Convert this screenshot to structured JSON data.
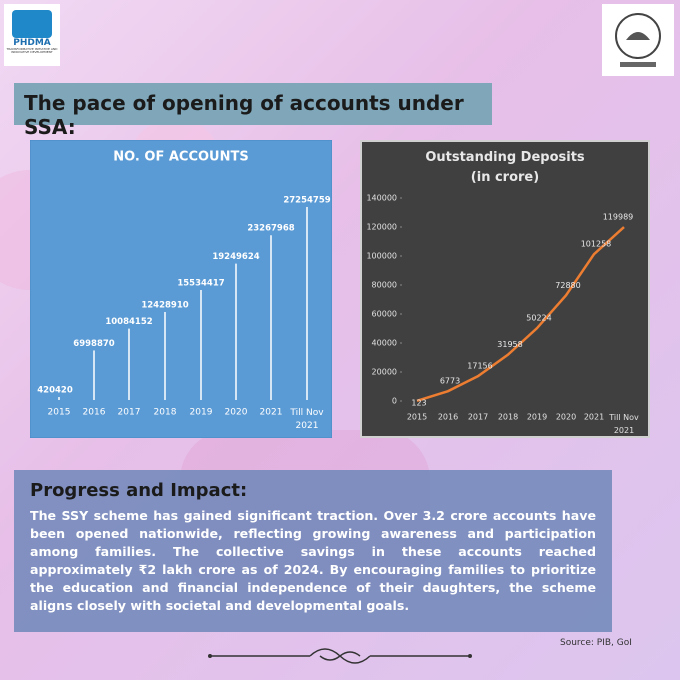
{
  "logo": {
    "name": "PHDMA",
    "tagline": "TRANSFORMATIVE INITIATIVE AND INNOVATIVE DEVELOPMENT"
  },
  "header": {
    "title": "The pace of opening of accounts under SSA:"
  },
  "chart_data": [
    {
      "type": "bar",
      "title": "NO. OF ACCOUNTS",
      "categories": [
        "2015",
        "2016",
        "2017",
        "2018",
        "2019",
        "2020",
        "2021",
        "Till Nov 2021"
      ],
      "values": [
        420420,
        6998870,
        10084152,
        12428910,
        15534417,
        19249624,
        23267968,
        27254759
      ],
      "color": "#ffffff"
    },
    {
      "type": "line",
      "title": "Outstanding Deposits (in crore)",
      "categories": [
        "2015",
        "2016",
        "2017",
        "2018",
        "2019",
        "2020",
        "2021",
        "Till Nov 2021"
      ],
      "series": [
        {
          "name": "Outstanding Deposits",
          "color": "#ed7d31",
          "values": [
            123,
            6773,
            17156,
            31958,
            50224,
            72880,
            101258,
            119989
          ]
        }
      ],
      "ylim": [
        0,
        140000
      ],
      "yticks": [
        0,
        20000,
        40000,
        60000,
        80000,
        100000,
        120000,
        140000
      ]
    }
  ],
  "section": {
    "heading": "Progress and Impact:",
    "body": "The SSY scheme has gained significant traction. Over 3.2 crore accounts have been opened nationwide, reflecting growing awareness and participation among families. The collective savings in these accounts reached approximately ₹2 lakh crore as of 2024. By encouraging families to prioritize the education and financial independence of their daughters, the scheme aligns closely with societal and developmental goals."
  },
  "source": "Source: PIB, GoI"
}
